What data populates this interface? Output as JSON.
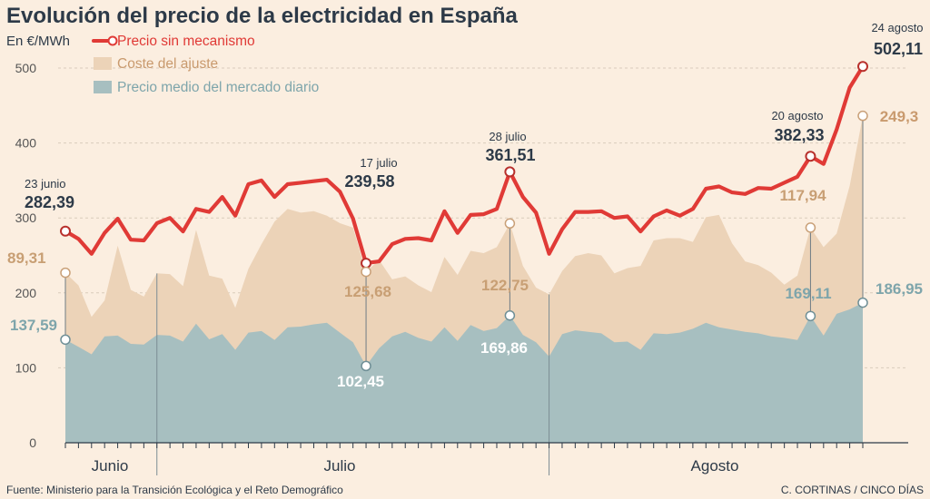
{
  "chart_data": {
    "type": "area",
    "title": "Evolución del precio de la electricidad en España",
    "ylabel": "En €/MWh",
    "ylim": [
      0,
      540
    ],
    "yticks": [
      0,
      100,
      200,
      300,
      400,
      500
    ],
    "months": [
      "Junio",
      "Julio",
      "Agosto"
    ],
    "colors": {
      "precio": "#e03a36",
      "coste": "#ecd3b8",
      "mercado": "#a7bfc0",
      "coste_label": "#c99a6e",
      "mercado_label": "#7ea5ab",
      "dark": "#2d3a48"
    },
    "series": [
      {
        "name": "Precio sin mecanismo",
        "values": [
          282.39,
          272,
          252,
          280,
          299,
          271,
          270,
          293,
          300,
          282,
          312,
          308,
          328,
          303,
          345,
          350,
          328,
          345,
          347,
          349,
          351,
          335,
          299,
          239.58,
          242,
          265,
          272,
          273,
          270,
          309,
          280,
          304,
          305,
          312,
          361.51,
          328,
          307,
          252,
          285,
          308,
          308,
          309,
          300,
          302,
          282,
          302,
          310,
          303,
          312,
          339,
          342,
          334,
          332,
          340,
          339,
          347,
          355,
          382.33,
          372,
          418,
          474,
          502.11
        ]
      },
      {
        "name": "Coste del ajuste",
        "values": [
          89.31,
          82,
          50,
          48,
          120,
          72,
          64,
          82,
          82,
          74,
          125,
          85,
          74,
          56,
          85,
          116,
          158,
          158,
          152,
          151,
          143,
          146,
          153,
          125.68,
          118,
          76,
          74,
          70,
          66,
          94,
          88,
          99,
          104,
          108,
          122.75,
          92,
          73,
          83,
          84,
          99,
          105,
          104,
          92,
          98,
          112,
          124,
          128,
          126,
          116,
          141,
          150,
          115,
          94,
          91,
          85,
          71,
          86,
          117.94,
          118,
          107,
          165,
          249.3
        ]
      },
      {
        "name": "Precio medio del mercado diario",
        "values": [
          137.59,
          128,
          118,
          142,
          143,
          132,
          131,
          144,
          143,
          135,
          159,
          138,
          145,
          124,
          147,
          149,
          137,
          154,
          155,
          158,
          160,
          147,
          134,
          102.45,
          126,
          142,
          148,
          140,
          135,
          154,
          136,
          157,
          149,
          153,
          169.86,
          144,
          134,
          115,
          145,
          150,
          148,
          146,
          134,
          135,
          124,
          146,
          145,
          147,
          152,
          160,
          154,
          151,
          148,
          146,
          142,
          140,
          137,
          169.11,
          143,
          172,
          178,
          186.95
        ]
      }
    ],
    "annotations": [
      {
        "date": "23 junio",
        "precio": "282,39",
        "coste": "89,31",
        "mercado": "137,59"
      },
      {
        "date": "17 julio",
        "precio": "239,58",
        "coste": "125,68",
        "mercado": "102,45"
      },
      {
        "date": "28 julio",
        "precio": "361,51",
        "coste": "122,75",
        "mercado": "169,86"
      },
      {
        "date": "20 agosto",
        "precio": "382,33",
        "coste": "117,94",
        "mercado": "169,11"
      },
      {
        "date": "24 agosto",
        "precio": "502,11",
        "coste": "249,3",
        "mercado": "186,95"
      }
    ]
  },
  "footer": {
    "source": "Fuente: Ministerio para la Transición Ecológica y el Reto Demográfico",
    "credit": "C. CORTINAS / CINCO DÍAS"
  }
}
